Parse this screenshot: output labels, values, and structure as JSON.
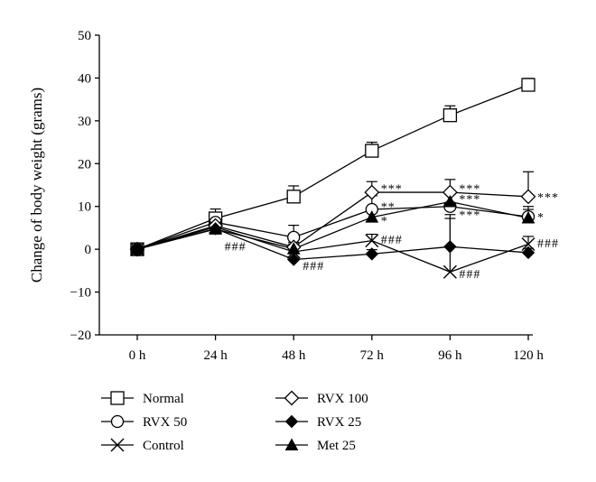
{
  "chart_data": {
    "type": "line",
    "title": "",
    "xlabel": "",
    "ylabel": "Change of body weight (grams)",
    "categories": [
      "0 h",
      "24 h",
      "48 h",
      "72 h",
      "96 h",
      "120 h"
    ],
    "yticks": [
      "50",
      "40",
      "30",
      "20",
      "10",
      "0",
      "−10",
      "−20"
    ],
    "ylim": [
      -20,
      50
    ],
    "grid": false,
    "legend_position": "bottom",
    "series": [
      {
        "name": "Normal",
        "marker": "open-square",
        "values": [
          0,
          7.2,
          12.3,
          23.0,
          31.3,
          38.4
        ],
        "error": [
          0,
          2.2,
          2.5,
          2.0,
          2.2,
          1.5
        ]
      },
      {
        "name": "RVX 50",
        "marker": "open-circle",
        "values": [
          0,
          6.3,
          2.8,
          9.3,
          10.0,
          7.6
        ],
        "error": [
          0,
          2.0,
          2.8,
          3.2,
          2.8,
          2.4
        ]
      },
      {
        "name": "Control",
        "marker": "cross",
        "values": [
          0,
          5.2,
          -0.6,
          2.0,
          -5.3,
          1.2
        ],
        "error": [
          0,
          1.5,
          1.8,
          1.5,
          12.5,
          1.8
        ]
      },
      {
        "name": "RVX 100",
        "marker": "open-diamond",
        "values": [
          0,
          5.5,
          0.5,
          13.3,
          13.3,
          12.3
        ],
        "error": [
          0,
          2.0,
          2.0,
          2.5,
          3.0,
          5.8
        ]
      },
      {
        "name": "RVX 25",
        "marker": "filled-diamond",
        "values": [
          0,
          4.8,
          -2.4,
          -1.1,
          0.6,
          -0.8
        ],
        "error": [
          0,
          1.5,
          1.5,
          1.0,
          7.5,
          1.0
        ]
      },
      {
        "name": "Met 25",
        "marker": "filled-triangle",
        "values": [
          0,
          4.7,
          0.1,
          7.5,
          11.1,
          7.3
        ],
        "error": [
          0,
          1.5,
          1.5,
          2.0,
          2.0,
          2.0
        ]
      }
    ],
    "annotations": [
      {
        "text": "###",
        "x": "24 h",
        "y": 0.8
      },
      {
        "text": "###",
        "x": "48 h",
        "y": -3.8
      },
      {
        "text": "***",
        "x": "72 h",
        "y": 14.3
      },
      {
        "text": "**",
        "x": "72 h",
        "y": 10.0
      },
      {
        "text": "*",
        "x": "72 h",
        "y": 6.8
      },
      {
        "text": "###",
        "x": "72 h",
        "y": 2.3
      },
      {
        "text": "***",
        "x": "96 h",
        "y": 14.3
      },
      {
        "text": "***",
        "x": "96 h",
        "y": 11.8
      },
      {
        "text": "***",
        "x": "96 h",
        "y": 8.2
      },
      {
        "text": "###",
        "x": "96 h",
        "y": -5.7
      },
      {
        "text": "***",
        "x": "120 h",
        "y": 12.3
      },
      {
        "text": "*",
        "x": "120 h",
        "y": 7.6
      },
      {
        "text": "###",
        "x": "120 h",
        "y": 1.5
      }
    ]
  }
}
